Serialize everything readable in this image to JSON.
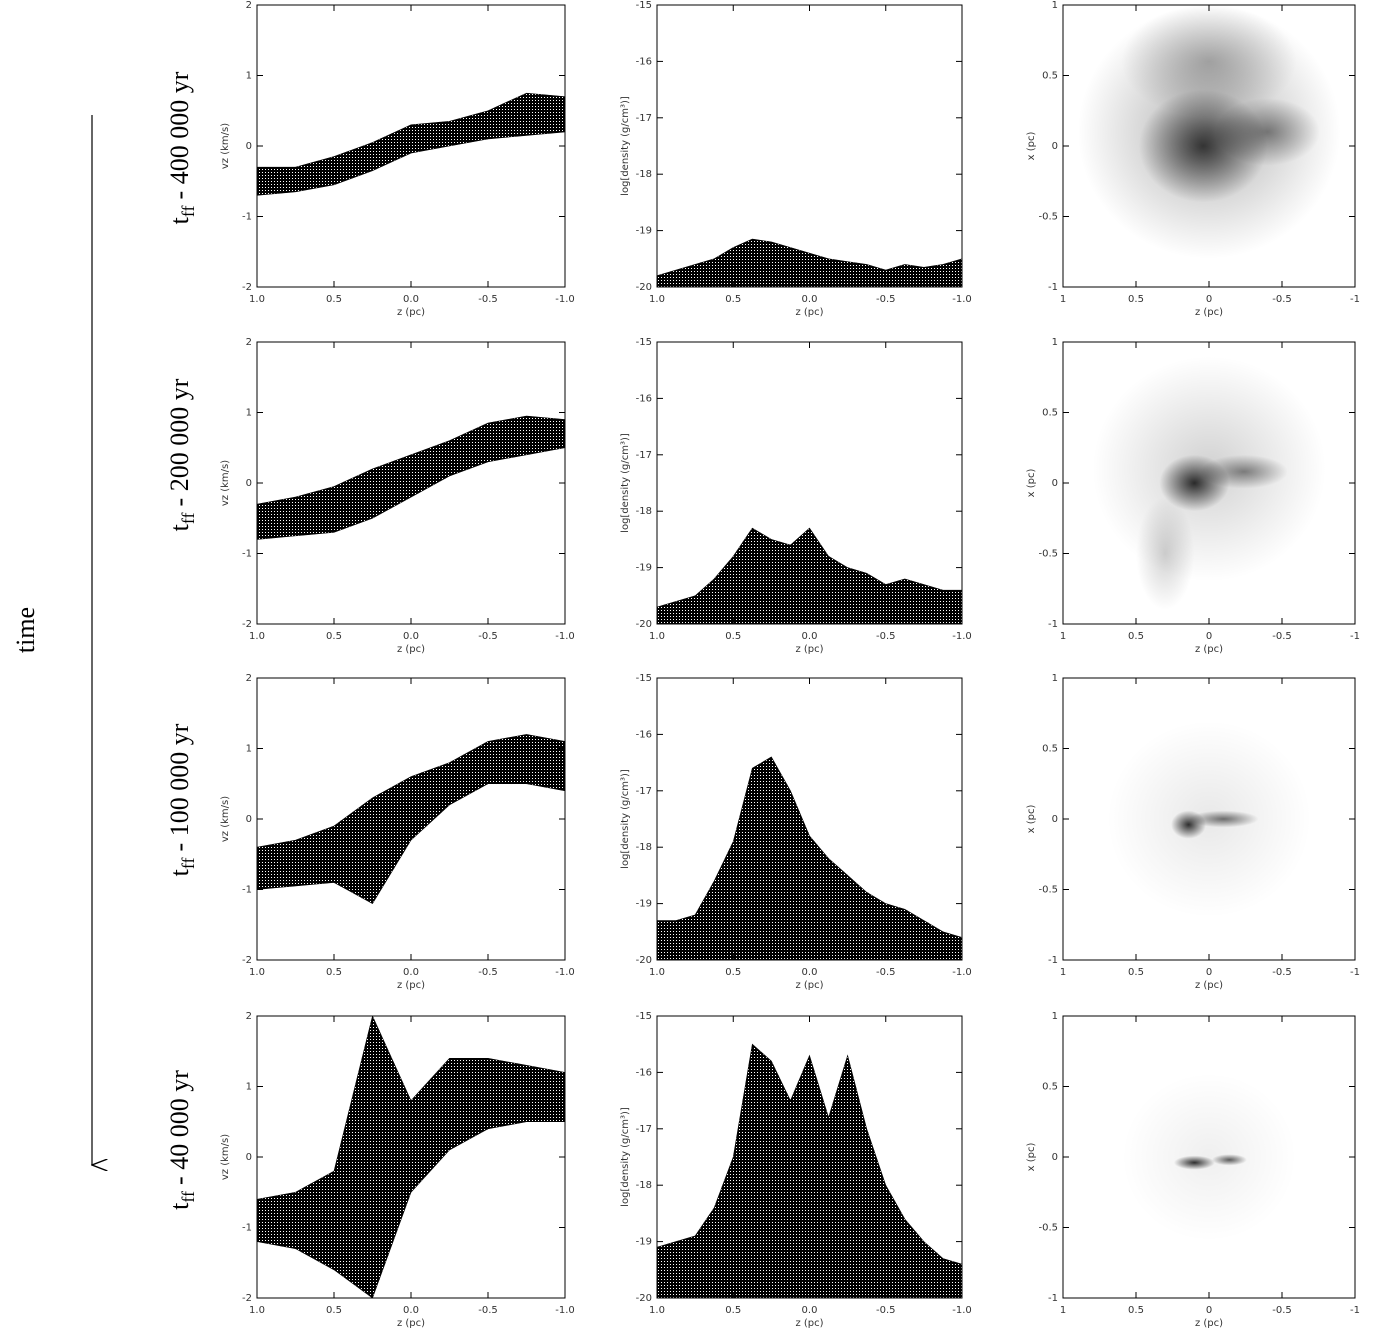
{
  "time_label": "time",
  "row_label": {
    "symbol": "t",
    "subscript": "ff",
    "texts": [
      "- 400 000 yr",
      "- 200 000 yr",
      "- 100 000 yr",
      "- 40 000 yr"
    ]
  },
  "chart_data": [
    {
      "type": "band",
      "xlabel": "z (pc)",
      "ylabel": "vz (km/s)",
      "xlim": [
        1,
        -1
      ],
      "ylim": [
        -2,
        2
      ],
      "xticks": [
        {
          "value": 1,
          "label": "1.0"
        },
        0.5,
        {
          "value": 0,
          "label": "0.0"
        },
        -0.5,
        {
          "value": -1,
          "label": "-1.0"
        }
      ],
      "yticks": [
        -2,
        -1,
        0,
        1,
        2
      ],
      "x": [
        1,
        0.75,
        0.5,
        0.25,
        0,
        -0.25,
        -0.5,
        -0.75,
        -1
      ],
      "lower": [
        -0.7,
        -0.65,
        -0.55,
        -0.35,
        -0.1,
        0.0,
        0.1,
        0.15,
        0.2
      ],
      "upper": [
        -0.3,
        -0.3,
        -0.15,
        0.05,
        0.3,
        0.35,
        0.5,
        0.75,
        0.7
      ]
    },
    {
      "type": "profile",
      "xlabel": "z (pc)",
      "ylabel": "log[density (g/cm³)]",
      "xlim": [
        1,
        -1
      ],
      "ylim": [
        -20,
        -15
      ],
      "xticks": [
        {
          "value": 1,
          "label": "1.0"
        },
        0.5,
        {
          "value": 0,
          "label": "0.0"
        },
        -0.5,
        {
          "value": -1,
          "label": "-1.0"
        }
      ],
      "yticks": [
        -20,
        -19,
        -18,
        -17,
        -16,
        -15
      ],
      "x": [
        1,
        0.875,
        0.75,
        0.625,
        0.5,
        0.375,
        0.25,
        0.125,
        0,
        -0.125,
        -0.25,
        -0.375,
        -0.5,
        -0.625,
        -0.75,
        -0.875,
        -1
      ],
      "upper": [
        -19.8,
        -19.7,
        -19.6,
        -19.5,
        -19.3,
        -19.15,
        -19.2,
        -19.3,
        -19.4,
        -19.5,
        -19.55,
        -19.6,
        -19.7,
        -19.6,
        -19.65,
        -19.6,
        -19.5
      ]
    },
    {
      "type": "image",
      "xlabel": "z (pc)",
      "ylabel": "x (pc)",
      "xlim": [
        1,
        -1
      ],
      "ylim": [
        -1,
        1
      ],
      "xticks": [
        1,
        0.5,
        0,
        -0.5,
        -1
      ],
      "yticks": [
        -1,
        -0.5,
        0,
        0.5,
        1
      ]
    },
    {
      "type": "band",
      "xlabel": "z (pc)",
      "ylabel": "vz (km/s)",
      "xlim": [
        1,
        -1
      ],
      "ylim": [
        -2,
        2
      ],
      "xticks": [
        {
          "value": 1,
          "label": "1.0"
        },
        0.5,
        {
          "value": 0,
          "label": "0.0"
        },
        -0.5,
        {
          "value": -1,
          "label": "-1.0"
        }
      ],
      "yticks": [
        -2,
        -1,
        0,
        1,
        2
      ],
      "x": [
        1,
        0.75,
        0.5,
        0.25,
        0,
        -0.25,
        -0.5,
        -0.75,
        -1
      ],
      "lower": [
        -0.8,
        -0.75,
        -0.7,
        -0.5,
        -0.2,
        0.1,
        0.3,
        0.4,
        0.5
      ],
      "upper": [
        -0.3,
        -0.2,
        -0.05,
        0.2,
        0.4,
        0.6,
        0.85,
        0.95,
        0.9
      ]
    },
    {
      "type": "profile",
      "xlabel": "z (pc)",
      "ylabel": "log[density (g/cm³)]",
      "xlim": [
        1,
        -1
      ],
      "ylim": [
        -20,
        -15
      ],
      "xticks": [
        {
          "value": 1,
          "label": "1.0"
        },
        0.5,
        {
          "value": 0,
          "label": "0.0"
        },
        -0.5,
        {
          "value": -1,
          "label": "-1.0"
        }
      ],
      "yticks": [
        -20,
        -19,
        -18,
        -17,
        -16,
        -15
      ],
      "x": [
        1,
        0.875,
        0.75,
        0.625,
        0.5,
        0.375,
        0.25,
        0.125,
        0,
        -0.125,
        -0.25,
        -0.375,
        -0.5,
        -0.625,
        -0.75,
        -0.875,
        -1
      ],
      "upper": [
        -19.7,
        -19.6,
        -19.5,
        -19.2,
        -18.8,
        -18.3,
        -18.5,
        -18.6,
        -18.3,
        -18.8,
        -19.0,
        -19.1,
        -19.3,
        -19.2,
        -19.3,
        -19.4,
        -19.4
      ]
    },
    {
      "type": "image",
      "xlabel": "z (pc)",
      "ylabel": "x (pc)",
      "xlim": [
        1,
        -1
      ],
      "ylim": [
        -1,
        1
      ],
      "xticks": [
        1,
        0.5,
        0,
        -0.5,
        -1
      ],
      "yticks": [
        -1,
        -0.5,
        0,
        0.5,
        1
      ]
    },
    {
      "type": "band",
      "xlabel": "z (pc)",
      "ylabel": "vz (km/s)",
      "xlim": [
        1,
        -1
      ],
      "ylim": [
        -2,
        2
      ],
      "xticks": [
        {
          "value": 1,
          "label": "1.0"
        },
        0.5,
        {
          "value": 0,
          "label": "0.0"
        },
        -0.5,
        {
          "value": -1,
          "label": "-1.0"
        }
      ],
      "yticks": [
        -2,
        -1,
        0,
        1,
        2
      ],
      "x": [
        1,
        0.75,
        0.5,
        0.25,
        0,
        -0.25,
        -0.5,
        -0.75,
        -1
      ],
      "lower": [
        -1.0,
        -0.95,
        -0.9,
        -1.2,
        -0.3,
        0.2,
        0.5,
        0.5,
        0.4
      ],
      "upper": [
        -0.4,
        -0.3,
        -0.1,
        0.3,
        0.6,
        0.8,
        1.1,
        1.2,
        1.1
      ]
    },
    {
      "type": "profile",
      "xlabel": "z (pc)",
      "ylabel": "log[density (g/cm³)]",
      "xlim": [
        1,
        -1
      ],
      "ylim": [
        -20,
        -15
      ],
      "xticks": [
        {
          "value": 1,
          "label": "1.0"
        },
        0.5,
        {
          "value": 0,
          "label": "0.0"
        },
        -0.5,
        {
          "value": -1,
          "label": "-1.0"
        }
      ],
      "yticks": [
        -20,
        -19,
        -18,
        -17,
        -16,
        -15
      ],
      "x": [
        1,
        0.875,
        0.75,
        0.625,
        0.5,
        0.375,
        0.25,
        0.125,
        0,
        -0.125,
        -0.25,
        -0.375,
        -0.5,
        -0.625,
        -0.75,
        -0.875,
        -1
      ],
      "upper": [
        -19.3,
        -19.3,
        -19.2,
        -18.6,
        -17.9,
        -16.6,
        -16.4,
        -17.0,
        -17.8,
        -18.2,
        -18.5,
        -18.8,
        -19.0,
        -19.1,
        -19.3,
        -19.5,
        -19.6
      ]
    },
    {
      "type": "image",
      "xlabel": "z (pc)",
      "ylabel": "x (pc)",
      "xlim": [
        1,
        -1
      ],
      "ylim": [
        -1,
        1
      ],
      "xticks": [
        1,
        0.5,
        0,
        -0.5,
        -1
      ],
      "yticks": [
        -1,
        -0.5,
        0,
        0.5,
        1
      ]
    },
    {
      "type": "band",
      "xlabel": "z (pc)",
      "ylabel": "vz (km/s)",
      "xlim": [
        1,
        -1
      ],
      "ylim": [
        -2,
        2
      ],
      "xticks": [
        {
          "value": 1,
          "label": "1.0"
        },
        0.5,
        {
          "value": 0,
          "label": "0.0"
        },
        -0.5,
        {
          "value": -1,
          "label": "-1.0"
        }
      ],
      "yticks": [
        -2,
        -1,
        0,
        1,
        2
      ],
      "x": [
        1,
        0.75,
        0.5,
        0.25,
        0,
        -0.25,
        -0.5,
        -0.75,
        -1
      ],
      "lower": [
        -1.2,
        -1.3,
        -1.6,
        -2.0,
        -0.5,
        0.1,
        0.4,
        0.5,
        0.5
      ],
      "upper": [
        -0.6,
        -0.5,
        -0.2,
        2.0,
        0.8,
        1.4,
        1.4,
        1.3,
        1.2
      ]
    },
    {
      "type": "profile",
      "xlabel": "z (pc)",
      "ylabel": "log[density (g/cm³)]",
      "xlim": [
        1,
        -1
      ],
      "ylim": [
        -20,
        -15
      ],
      "xticks": [
        {
          "value": 1,
          "label": "1.0"
        },
        0.5,
        {
          "value": 0,
          "label": "0.0"
        },
        -0.5,
        {
          "value": -1,
          "label": "-1.0"
        }
      ],
      "yticks": [
        -20,
        -19,
        -18,
        -17,
        -16,
        -15
      ],
      "x": [
        1,
        0.875,
        0.75,
        0.625,
        0.5,
        0.375,
        0.25,
        0.125,
        0,
        -0.125,
        -0.25,
        -0.375,
        -0.5,
        -0.625,
        -0.75,
        -0.875,
        -1
      ],
      "upper": [
        -19.1,
        -19.0,
        -18.9,
        -18.4,
        -17.5,
        -15.5,
        -15.8,
        -16.5,
        -15.7,
        -16.8,
        -15.7,
        -17.0,
        -18.0,
        -18.6,
        -19.0,
        -19.3,
        -19.4
      ]
    },
    {
      "type": "image",
      "xlabel": "z (pc)",
      "ylabel": "x (pc)",
      "xlim": [
        1,
        -1
      ],
      "ylim": [
        -1,
        1
      ],
      "xticks": [
        1,
        0.5,
        0,
        -0.5,
        -1
      ],
      "yticks": [
        -1,
        -0.5,
        0,
        0.5,
        1
      ]
    }
  ]
}
